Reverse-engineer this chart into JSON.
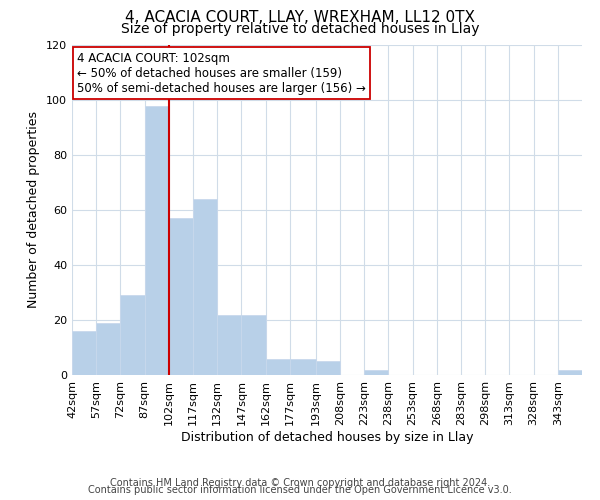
{
  "title": "4, ACACIA COURT, LLAY, WREXHAM, LL12 0TX",
  "subtitle": "Size of property relative to detached houses in Llay",
  "xlabel": "Distribution of detached houses by size in Llay",
  "ylabel": "Number of detached properties",
  "bin_labels": [
    "42sqm",
    "57sqm",
    "72sqm",
    "87sqm",
    "102sqm",
    "117sqm",
    "132sqm",
    "147sqm",
    "162sqm",
    "177sqm",
    "193sqm",
    "208sqm",
    "223sqm",
    "238sqm",
    "253sqm",
    "268sqm",
    "283sqm",
    "298sqm",
    "313sqm",
    "328sqm",
    "343sqm"
  ],
  "bin_edges": [
    42,
    57,
    72,
    87,
    102,
    117,
    132,
    147,
    162,
    177,
    193,
    208,
    223,
    238,
    253,
    268,
    283,
    298,
    313,
    328,
    343,
    358
  ],
  "bar_values": [
    16,
    19,
    29,
    98,
    57,
    64,
    22,
    22,
    6,
    6,
    5,
    0,
    2,
    0,
    0,
    0,
    0,
    0,
    0,
    0,
    2
  ],
  "bar_color": "#b8d0e8",
  "bar_edge_color": "#c8d8ec",
  "vline_x": 102,
  "vline_color": "#cc0000",
  "annotation_title": "4 ACACIA COURT: 102sqm",
  "annotation_line1": "← 50% of detached houses are smaller (159)",
  "annotation_line2": "50% of semi-detached houses are larger (156) →",
  "annotation_box_color": "#ffffff",
  "annotation_box_edge": "#cc0000",
  "ylim": [
    0,
    120
  ],
  "yticks": [
    0,
    20,
    40,
    60,
    80,
    100,
    120
  ],
  "footer1": "Contains HM Land Registry data © Crown copyright and database right 2024.",
  "footer2": "Contains public sector information licensed under the Open Government Licence v3.0.",
  "background_color": "#ffffff",
  "grid_color": "#d0dce8",
  "title_fontsize": 11,
  "subtitle_fontsize": 10,
  "axis_label_fontsize": 9,
  "tick_fontsize": 8,
  "annotation_fontsize": 8.5,
  "footer_fontsize": 7
}
